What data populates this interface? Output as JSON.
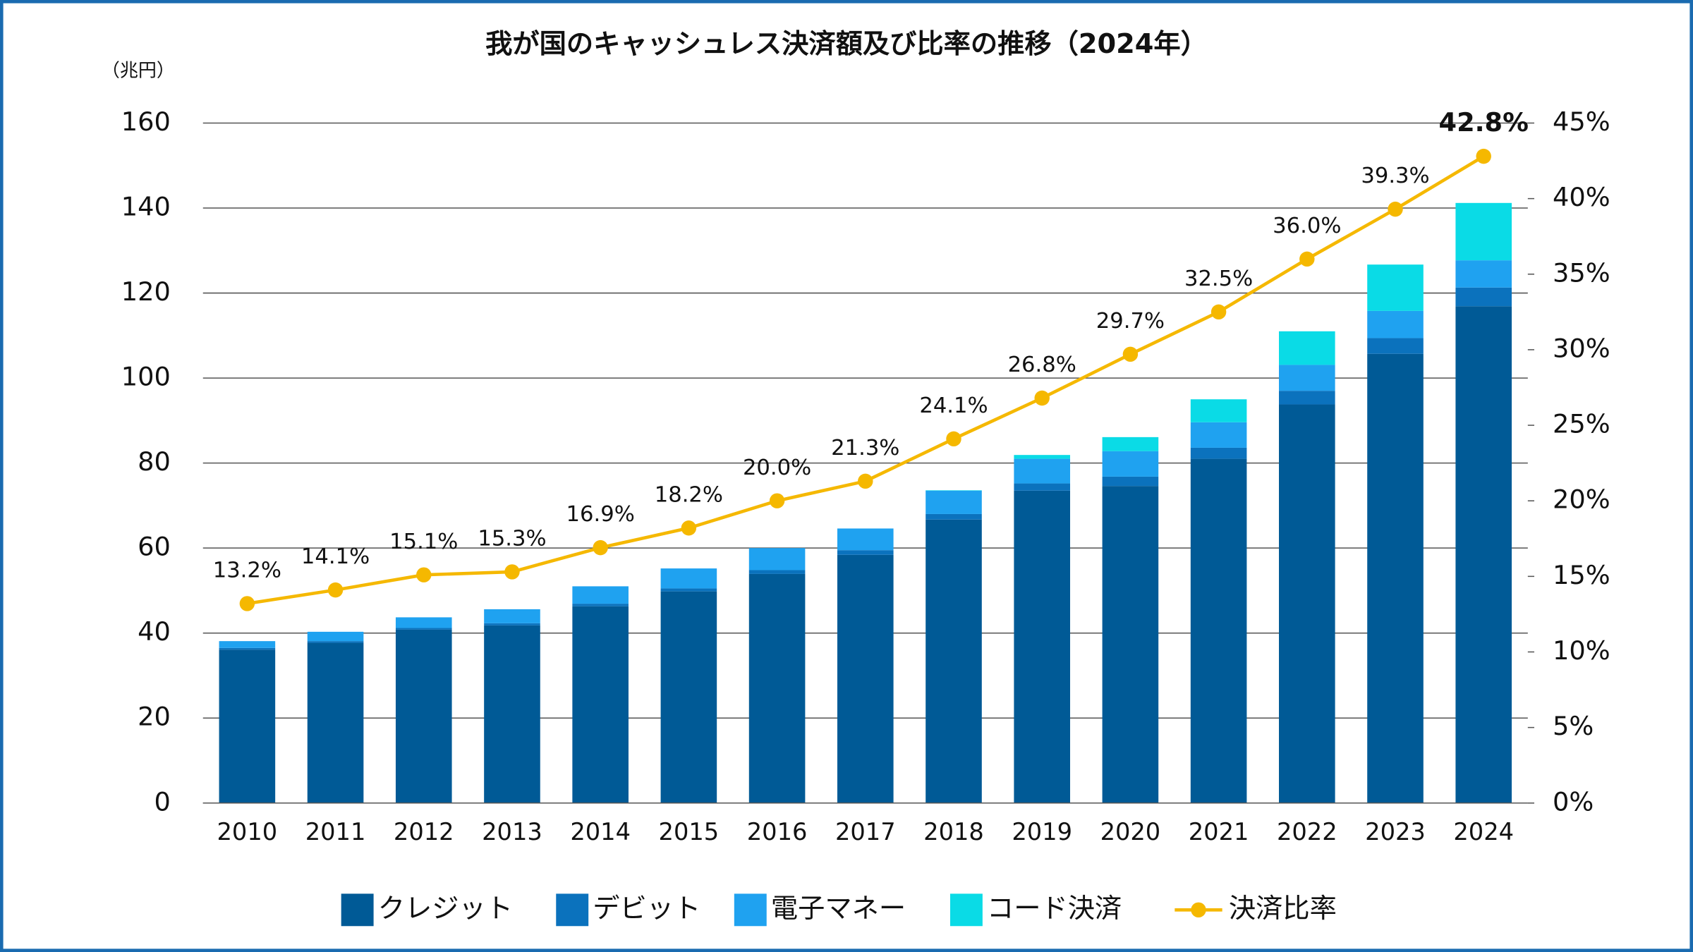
{
  "chart_data": {
    "type": "bar",
    "stacked": true,
    "title": "我が国のキャッシュレス決済額及び比率の推移（2024年）",
    "y_label": "（兆円）",
    "categories": [
      "2010",
      "2011",
      "2012",
      "2013",
      "2014",
      "2015",
      "2016",
      "2017",
      "2018",
      "2019",
      "2020",
      "2021",
      "2022",
      "2023",
      "2024"
    ],
    "series": [
      {
        "name": "クレジット",
        "color": "#005a96",
        "values": [
          36.1,
          37.7,
          40.8,
          41.8,
          46.3,
          49.8,
          53.9,
          58.4,
          66.7,
          73.5,
          74.6,
          81.0,
          93.8,
          105.7,
          116.9
        ]
      },
      {
        "name": "デビット",
        "color": "#0b72bd",
        "values": [
          0.4,
          0.4,
          0.4,
          0.5,
          0.6,
          0.7,
          0.9,
          1.1,
          1.3,
          1.7,
          2.2,
          2.6,
          3.2,
          3.7,
          4.4
        ]
      },
      {
        "name": "電子マネー",
        "color": "#1fa2f0",
        "values": [
          1.6,
          2.2,
          2.5,
          3.3,
          4.1,
          4.7,
          5.2,
          5.1,
          5.5,
          5.8,
          6.0,
          6.0,
          6.1,
          6.4,
          6.4
        ]
      },
      {
        "name": "コード決済",
        "color": "#0adbe6",
        "values": [
          0,
          0,
          0,
          0,
          0,
          0,
          0,
          0,
          0.1,
          0.9,
          3.3,
          5.4,
          7.9,
          10.9,
          13.5
        ]
      },
      {
        "name": "決済比率",
        "color": "#f5b800",
        "type": "line",
        "axis": "y2",
        "values": [
          13.2,
          14.1,
          15.1,
          15.3,
          16.9,
          18.2,
          20.0,
          21.3,
          24.1,
          26.8,
          29.7,
          32.5,
          36.0,
          39.3,
          42.8
        ],
        "value_labels": [
          "13.2%",
          "14.1%",
          "15.1%",
          "15.3%",
          "16.9%",
          "18.2%",
          "20.0%",
          "21.3%",
          "24.1%",
          "26.8%",
          "29.7%",
          "32.5%",
          "36.0%",
          "39.3%",
          "42.8%"
        ],
        "highlight_last_color": "#b8231a"
      }
    ],
    "ylim": [
      0,
      160
    ],
    "yticks": [
      0,
      20,
      40,
      60,
      80,
      100,
      120,
      140,
      160
    ],
    "y2lim": [
      0,
      45
    ],
    "y2ticks": [
      {
        "value": 0,
        "label": "0%"
      },
      {
        "value": 5,
        "label": "5%"
      },
      {
        "value": 10,
        "label": "10%"
      },
      {
        "value": 15,
        "label": "15%"
      },
      {
        "value": 20,
        "label": "20%"
      },
      {
        "value": 25,
        "label": "25%"
      },
      {
        "value": 30,
        "label": "30%"
      },
      {
        "value": 35,
        "label": "35%"
      },
      {
        "value": 40,
        "label": "40%"
      },
      {
        "value": 45,
        "label": "45%"
      }
    ],
    "grid": true,
    "legend": "bottom"
  }
}
